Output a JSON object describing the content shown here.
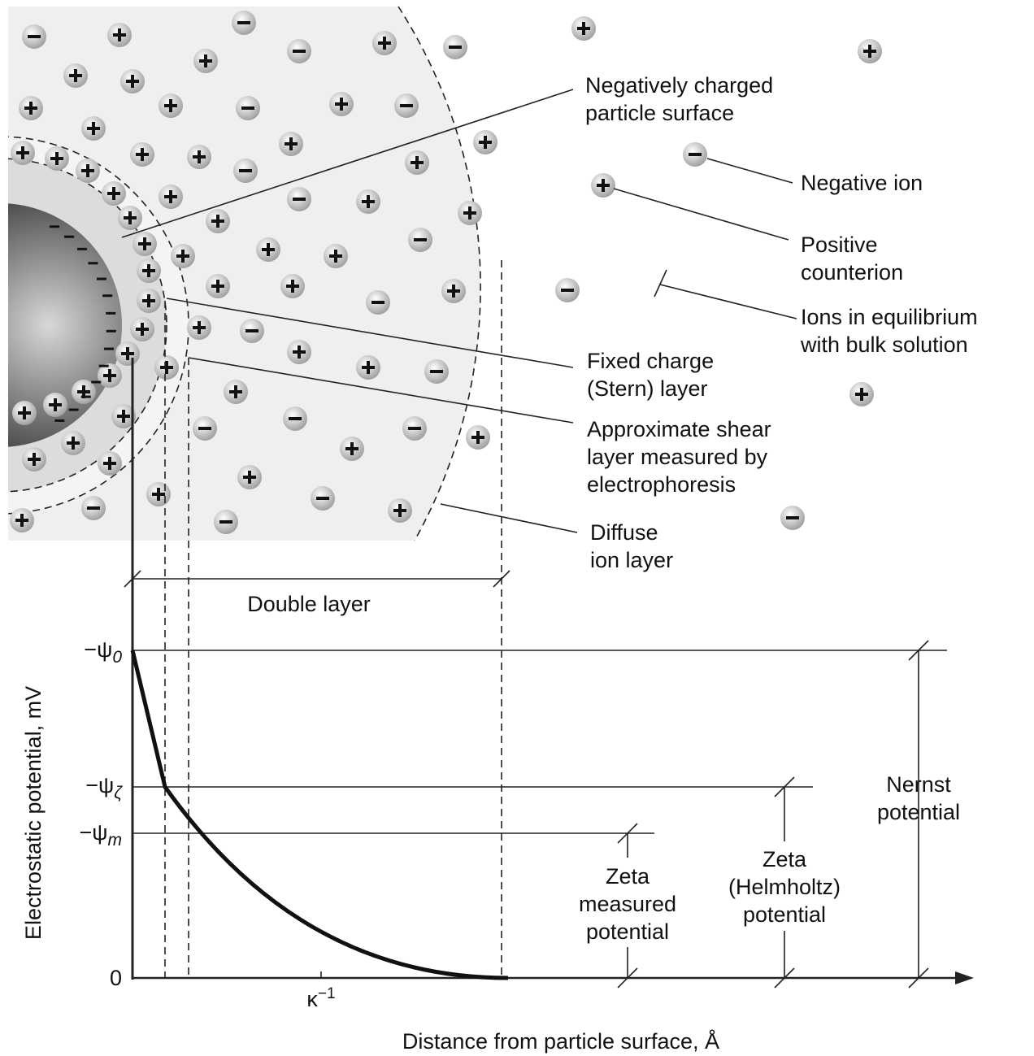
{
  "labels": {
    "particle_surface": [
      "Negatively charged",
      "particle surface"
    ],
    "negative_ion": "Negative ion",
    "positive_counterion": [
      "Positive",
      "counterion"
    ],
    "bulk_ions": [
      "Ions in equilibrium",
      "with bulk solution"
    ],
    "stern_layer": [
      "Fixed charge",
      "(Stern) layer"
    ],
    "shear_layer": [
      "Approximate shear",
      "layer measured by",
      "electrophoresis"
    ],
    "diffuse_layer": [
      "Diffuse",
      "ion layer"
    ],
    "double_layer": "Double layer",
    "nernst": [
      "Nernst",
      "potential"
    ],
    "zeta_helmholtz": [
      "Zeta",
      "(Helmholtz)",
      "potential"
    ],
    "zeta_measured": [
      "Zeta",
      "measured",
      "potential"
    ]
  },
  "axes": {
    "y_label": "Electrostatic potential, mV",
    "x_label": "Distance from particle surface, Å",
    "y_ticks": [
      {
        "symbol": "−ψ",
        "subscript": "0"
      },
      {
        "symbol": "−ψ",
        "subscript": "ζ"
      },
      {
        "symbol": "−ψ",
        "subscript": "m"
      },
      {
        "symbol": "0"
      }
    ],
    "x_tick": {
      "symbol": "κ",
      "superscript": "−1"
    }
  }
}
